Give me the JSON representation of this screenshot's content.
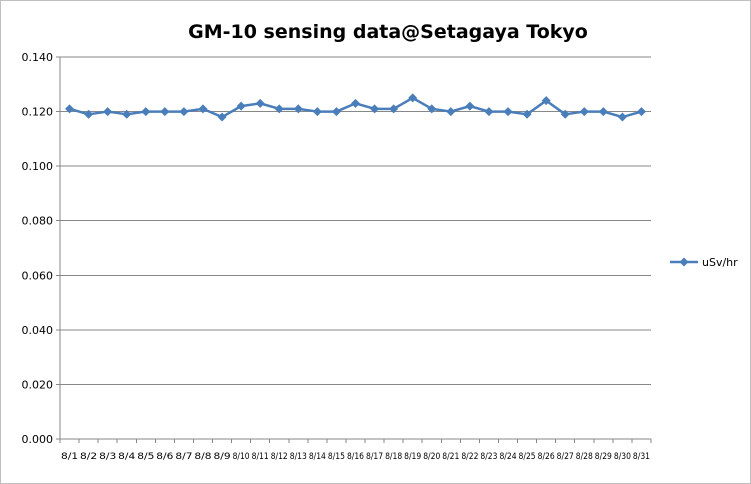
{
  "chart_data": {
    "type": "line",
    "title": "GM-10 sensing data@Setagaya Tokyo",
    "xlabel": "",
    "ylabel": "",
    "ylim": [
      0,
      0.14
    ],
    "yticks": [
      "0.000",
      "0.020",
      "0.040",
      "0.060",
      "0.080",
      "0.100",
      "0.120",
      "0.140"
    ],
    "categories": [
      "8/1",
      "8/2",
      "8/3",
      "8/4",
      "8/5",
      "8/6",
      "8/7",
      "8/8",
      "8/9",
      "8/10",
      "8/11",
      "8/12",
      "8/13",
      "8/14",
      "8/15",
      "8/16",
      "8/17",
      "8/18",
      "8/19",
      "8/20",
      "8/21",
      "8/22",
      "8/23",
      "8/24",
      "8/25",
      "8/26",
      "8/27",
      "8/28",
      "8/29",
      "8/30",
      "8/31"
    ],
    "series": [
      {
        "name": "uSv/hr",
        "color": "#4a7ebb",
        "marker": "diamond",
        "values": [
          0.121,
          0.119,
          0.12,
          0.119,
          0.12,
          0.12,
          0.12,
          0.121,
          0.118,
          0.122,
          0.123,
          0.121,
          0.121,
          0.12,
          0.12,
          0.123,
          0.121,
          0.121,
          0.125,
          0.121,
          0.12,
          0.122,
          0.12,
          0.12,
          0.119,
          0.124,
          0.119,
          0.12,
          0.12,
          0.118,
          0.12
        ]
      }
    ],
    "grid": true,
    "legend_position": "right"
  }
}
